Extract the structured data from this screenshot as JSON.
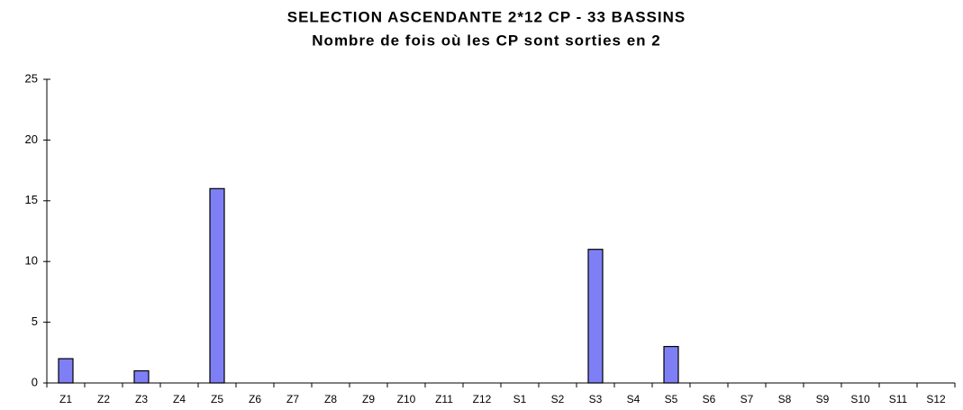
{
  "chart_data": {
    "type": "bar",
    "title": "SELECTION ASCENDANTE 2*12 CP - 33 BASSINS",
    "subtitle": "Nombre de fois où les CP sont sorties en 2",
    "categories": [
      "Z1",
      "Z2",
      "Z3",
      "Z4",
      "Z5",
      "Z6",
      "Z7",
      "Z8",
      "Z9",
      "Z10",
      "Z11",
      "Z12",
      "S1",
      "S2",
      "S3",
      "S4",
      "S5",
      "S6",
      "S7",
      "S8",
      "S9",
      "S10",
      "S11",
      "S12"
    ],
    "values": [
      2,
      0,
      1,
      0,
      16,
      0,
      0,
      0,
      0,
      0,
      0,
      0,
      0,
      0,
      11,
      0,
      3,
      0,
      0,
      0,
      0,
      0,
      0,
      0
    ],
    "color": "#7f7ff5",
    "ylim": [
      0,
      25
    ],
    "yticks": [
      0,
      5,
      10,
      15,
      20,
      25
    ],
    "grid": false
  }
}
